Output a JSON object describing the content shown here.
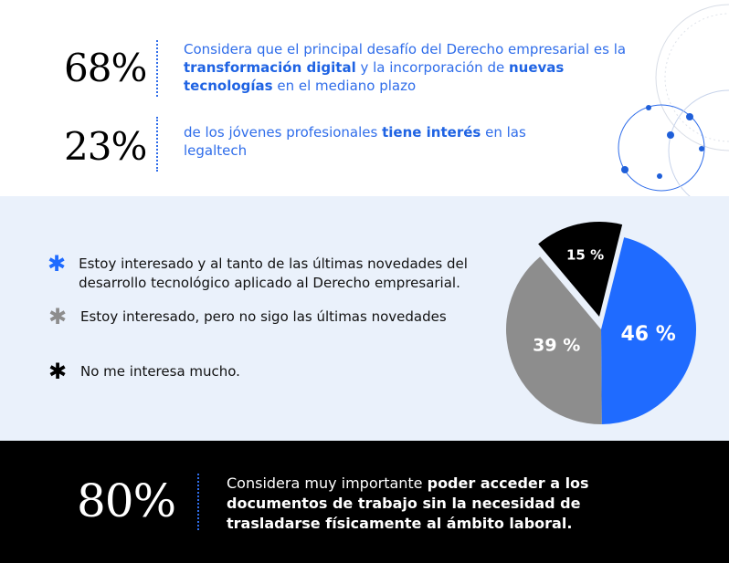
{
  "stats": [
    {
      "value": "68%",
      "text_parts": [
        "Considera que el principal desafío del Derecho empresarial es la ",
        "transformación digital",
        " y la incorporación de ",
        "nuevas tecnologías",
        " en el mediano plazo"
      ]
    },
    {
      "value": "23%",
      "text_parts": [
        "de los jóvenes profesionales ",
        "tiene interés",
        " en las legaltech"
      ]
    }
  ],
  "legend": [
    {
      "text": "Estoy interesado y al tanto de las últimas novedades del desarrollo tecnológico aplicado al Derecho empresarial.",
      "color": "#1f6bff",
      "glyph": "✱",
      "icon": "asterisk-icon"
    },
    {
      "text": "Estoy interesado, pero no sigo las últimas novedades",
      "color": "#8d8d8d",
      "glyph": "✱",
      "icon": "asterisk-icon"
    },
    {
      "text": "No me interesa mucho.",
      "color": "#000000",
      "glyph": "✱",
      "icon": "asterisk-icon"
    }
  ],
  "chart_data": {
    "type": "pie",
    "categories": [
      "Estoy interesado y al tanto de las últimas novedades del desarrollo tecnológico aplicado al Derecho empresarial.",
      "Estoy interesado, pero no sigo las últimas novedades",
      "No me interesa mucho."
    ],
    "values": [
      46,
      39,
      15
    ],
    "labels": [
      "46 %",
      "39 %",
      "15 %"
    ],
    "colors": [
      "#1f6bff",
      "#8d8d8d",
      "#000000"
    ],
    "legend_position": "left"
  },
  "bottom": {
    "value": "80%",
    "text_parts": [
      "Considera muy importante ",
      "poder acceder a los documentos de trabajo sin la necesidad de trasladarse físicamente al ámbito laboral."
    ]
  }
}
